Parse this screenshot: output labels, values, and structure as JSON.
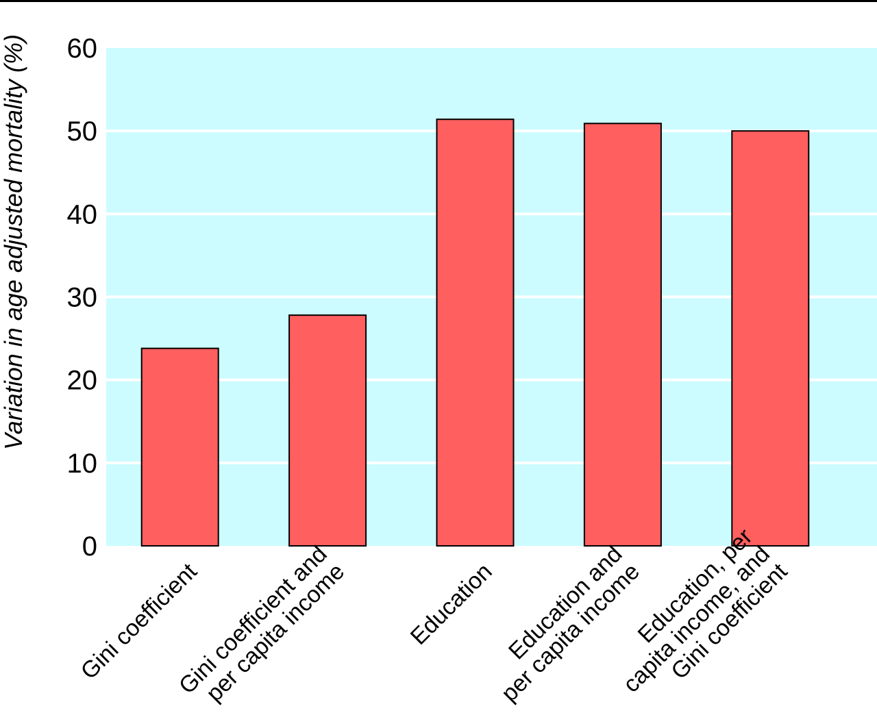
{
  "chart_data": {
    "type": "bar",
    "ylabel": "Variation in age adjusted mortality (%)",
    "ylim": [
      0,
      60
    ],
    "yticks": [
      "0",
      "10",
      "20",
      "30",
      "40",
      "50",
      "60"
    ],
    "grid": true,
    "colors": {
      "plot_background": "#ccfcff",
      "bar_fill": "#ff5f5f",
      "bar_stroke": "#000000",
      "gridline": "#ffffff"
    },
    "categories": [
      [
        "Gini coefficient"
      ],
      [
        "Gini coefficient and",
        "per capita income"
      ],
      [
        "Education"
      ],
      [
        "Education and",
        "per capita income"
      ],
      [
        "Education, per",
        "capita income, and",
        "Gini coefficient"
      ]
    ],
    "values": [
      23.8,
      27.8,
      51.4,
      50.9,
      50.0
    ]
  }
}
